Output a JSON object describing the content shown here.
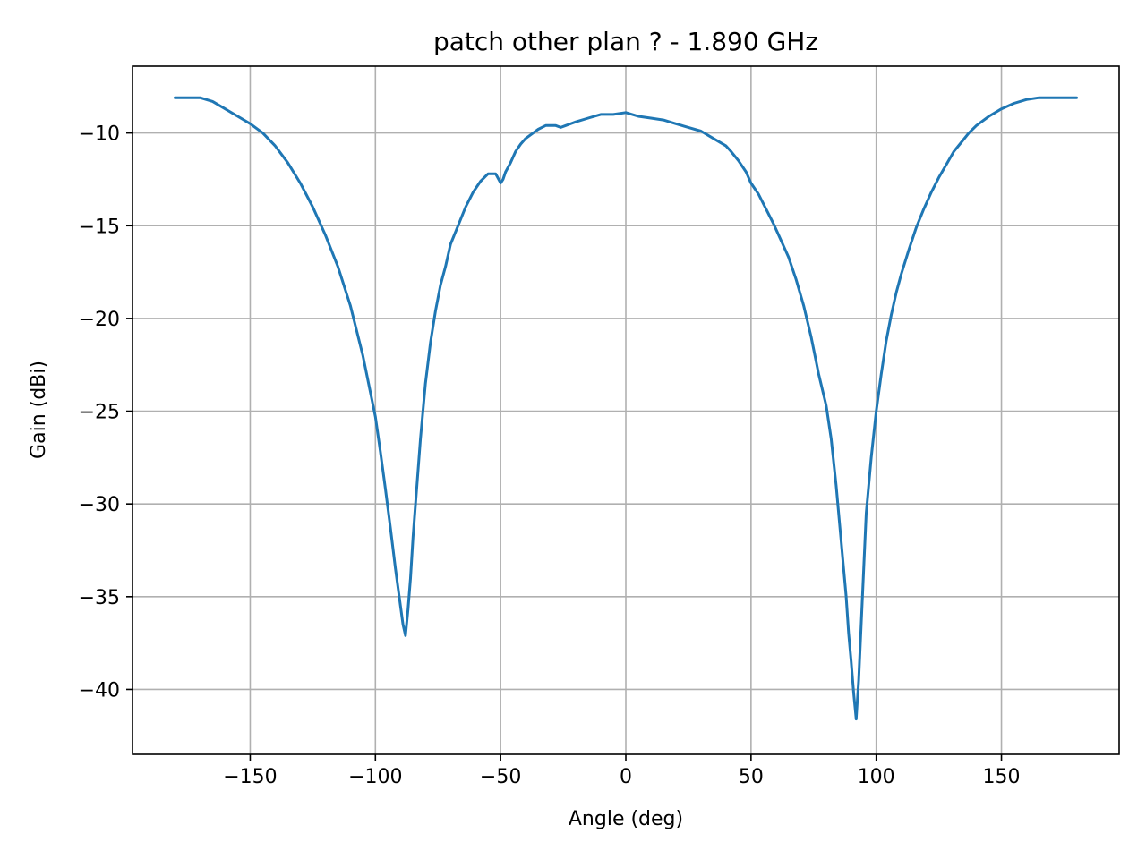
{
  "chart_data": {
    "type": "line",
    "title": "patch other plan ? - 1.890 GHz",
    "xlabel": "Angle (deg)",
    "ylabel": "Gain (dBi)",
    "xlim": [
      -197,
      197
    ],
    "ylim": [
      -43.5,
      -6.4
    ],
    "grid": true,
    "legend": "none",
    "x_ticks": [
      -150,
      -100,
      -50,
      0,
      50,
      100,
      150
    ],
    "x_tick_labels": [
      "−150",
      "−100",
      "−50",
      "0",
      "50",
      "100",
      "150"
    ],
    "y_ticks": [
      -10,
      -15,
      -20,
      -25,
      -30,
      -35,
      -40
    ],
    "y_tick_labels": [
      "−10",
      "−15",
      "−20",
      "−25",
      "−30",
      "−35",
      "−40"
    ],
    "series": [
      {
        "color": "#1f77b4",
        "x": [
          -180,
          -175,
          -170,
          -165,
          -160,
          -155,
          -150,
          -145,
          -140,
          -135,
          -130,
          -125,
          -120,
          -115,
          -110,
          -105,
          -100,
          -98,
          -96,
          -94,
          -92,
          -90,
          -89,
          -88,
          -87,
          -86,
          -85,
          -84,
          -82,
          -80,
          -78,
          -76,
          -74,
          -72,
          -70,
          -67,
          -64,
          -61,
          -58,
          -55,
          -52,
          -50,
          -49,
          -48,
          -46,
          -44,
          -42,
          -40,
          -38,
          -35,
          -32,
          -28,
          -26,
          -24,
          -20,
          -15,
          -10,
          -5,
          0,
          5,
          10,
          15,
          20,
          25,
          30,
          35,
          40,
          42,
          45,
          48,
          50,
          53,
          56,
          59,
          62,
          65,
          68,
          71,
          74,
          77,
          80,
          82,
          84,
          86,
          88,
          89,
          90,
          91,
          92,
          93,
          94,
          95,
          96,
          98,
          100,
          102,
          104,
          106,
          108,
          110,
          113,
          116,
          119,
          122,
          125,
          128,
          131,
          134,
          137,
          140,
          145,
          150,
          155,
          160,
          165,
          170,
          175,
          180
        ],
        "values": [
          -8.1,
          -8.1,
          -8.1,
          -8.3,
          -8.7,
          -9.1,
          -9.5,
          -10.0,
          -10.7,
          -11.6,
          -12.7,
          -14.0,
          -15.5,
          -17.2,
          -19.3,
          -22.0,
          -25.3,
          -27.2,
          -29.2,
          -31.3,
          -33.5,
          -35.5,
          -36.5,
          -37.1,
          -35.7,
          -34.0,
          -31.8,
          -30.0,
          -26.5,
          -23.5,
          -21.3,
          -19.6,
          -18.2,
          -17.2,
          -16.0,
          -15.0,
          -14.0,
          -13.2,
          -12.6,
          -12.2,
          -12.2,
          -12.7,
          -12.5,
          -12.1,
          -11.6,
          -11.0,
          -10.6,
          -10.3,
          -10.1,
          -9.8,
          -9.6,
          -9.6,
          -9.7,
          -9.6,
          -9.4,
          -9.2,
          -9.0,
          -9.0,
          -8.9,
          -9.1,
          -9.2,
          -9.3,
          -9.5,
          -9.7,
          -9.9,
          -10.3,
          -10.7,
          -11.0,
          -11.5,
          -12.1,
          -12.7,
          -13.3,
          -14.1,
          -14.9,
          -15.8,
          -16.7,
          -17.9,
          -19.3,
          -21.0,
          -23.0,
          -24.7,
          -26.5,
          -29.0,
          -32.0,
          -35.0,
          -37.0,
          -38.5,
          -40.2,
          -41.6,
          -39.5,
          -36.5,
          -33.5,
          -30.5,
          -27.5,
          -25.0,
          -23.0,
          -21.2,
          -19.8,
          -18.6,
          -17.6,
          -16.3,
          -15.1,
          -14.1,
          -13.2,
          -12.4,
          -11.7,
          -11.0,
          -10.5,
          -10.0,
          -9.6,
          -9.1,
          -8.7,
          -8.4,
          -8.2,
          -8.1,
          -8.1,
          -8.1,
          -8.1
        ]
      }
    ]
  }
}
